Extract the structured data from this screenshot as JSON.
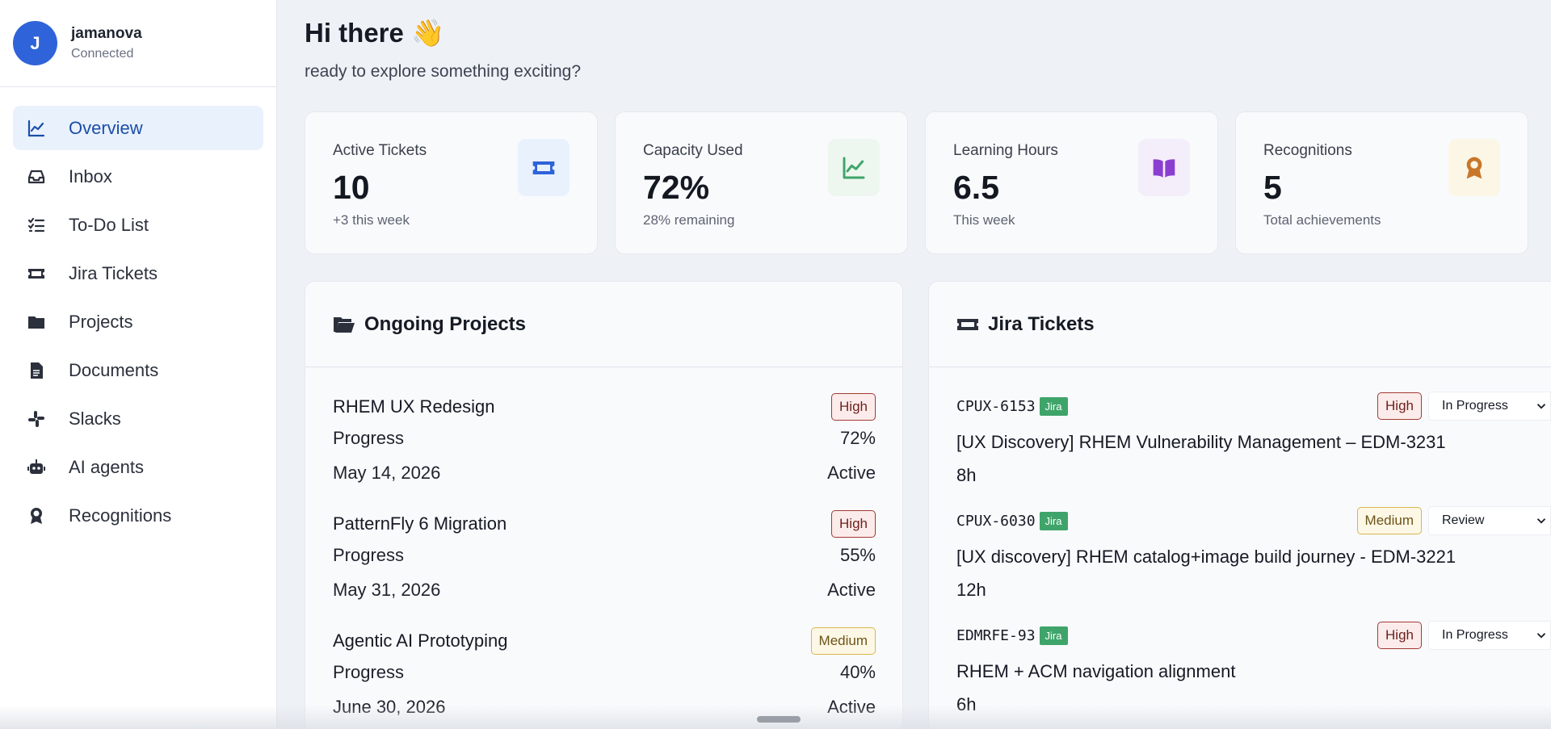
{
  "user": {
    "initial": "J",
    "name": "jamanova",
    "status": "Connected"
  },
  "nav": [
    {
      "label": "Overview",
      "icon": "chart-line-icon",
      "active": true
    },
    {
      "label": "Inbox",
      "icon": "inbox-icon"
    },
    {
      "label": "To-Do List",
      "icon": "checklist-icon"
    },
    {
      "label": "Jira Tickets",
      "icon": "ticket-icon"
    },
    {
      "label": "Projects",
      "icon": "folder-icon"
    },
    {
      "label": "Documents",
      "icon": "document-icon"
    },
    {
      "label": "Slacks",
      "icon": "slack-icon"
    },
    {
      "label": "AI agents",
      "icon": "robot-icon"
    },
    {
      "label": "Recognitions",
      "icon": "award-icon"
    }
  ],
  "header": {
    "greeting": "Hi there 👋",
    "subtitle": "ready to explore something exciting?"
  },
  "stats": [
    {
      "label": "Active Tickets",
      "value": "10",
      "note": "+3 this week",
      "icon": "ticket-icon",
      "color": "#2f63d9",
      "bg": "#e9f1fd"
    },
    {
      "label": "Capacity Used",
      "value": "72%",
      "note": "28% remaining",
      "icon": "chart-line-icon",
      "color": "#3fa46a",
      "bg": "#edf7ef"
    },
    {
      "label": "Learning Hours",
      "value": "6.5",
      "note": "This week",
      "icon": "book-icon",
      "color": "#8a3fd1",
      "bg": "#f4eefb"
    },
    {
      "label": "Recognitions",
      "value": "5",
      "note": "Total achievements",
      "icon": "award-icon",
      "color": "#c8762a",
      "bg": "#fcf6e6"
    }
  ],
  "projects": {
    "title": "Ongoing Projects",
    "items": [
      {
        "name": "RHEM UX Redesign",
        "priority": "High",
        "progress_label": "Progress",
        "progress": "72%",
        "date": "May 14, 2026",
        "status": "Active"
      },
      {
        "name": "PatternFly 6 Migration",
        "priority": "High",
        "progress_label": "Progress",
        "progress": "55%",
        "date": "May 31, 2026",
        "status": "Active"
      },
      {
        "name": "Agentic AI Prototyping",
        "priority": "Medium",
        "progress_label": "Progress",
        "progress": "40%",
        "date": "June 30, 2026",
        "status": "Active"
      }
    ]
  },
  "tickets": {
    "title": "Jira Tickets",
    "items": [
      {
        "id": "CPUX-6153",
        "tag": "Jira",
        "priority": "High",
        "status": "In Progress",
        "title": "[UX Discovery] RHEM Vulnerability Management – EDM-3231",
        "hours": "8h"
      },
      {
        "id": "CPUX-6030",
        "tag": "Jira",
        "priority": "Medium",
        "status": "Review",
        "title": "[UX discovery] RHEM catalog+image build journey - EDM-3221",
        "hours": "12h"
      },
      {
        "id": "EDMRFE-93",
        "tag": "Jira",
        "priority": "High",
        "status": "In Progress",
        "title": "RHEM + ACM navigation alignment",
        "hours": "6h"
      }
    ]
  }
}
